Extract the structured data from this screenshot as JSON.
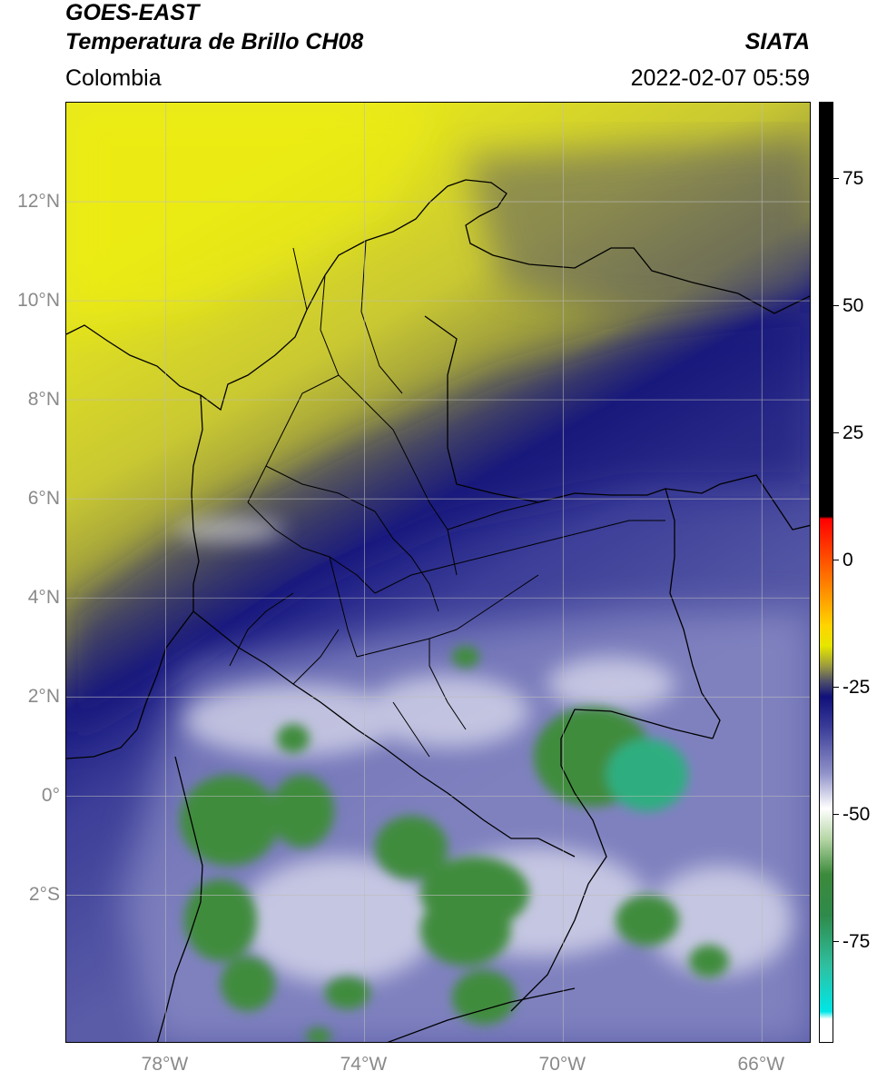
{
  "header": {
    "title_line1": "GOES-EAST",
    "title_line2": "Temperatura de Brillo CH08",
    "credit": "SIATA",
    "region": "Colombia",
    "timestamp": "2022-02-07 05:59"
  },
  "map": {
    "lat_range": [
      -5.0,
      14.0
    ],
    "lon_range": [
      -80.0,
      -65.0
    ],
    "lat_ticks": [
      {
        "value": 12,
        "label": "12°N"
      },
      {
        "value": 10,
        "label": "10°N"
      },
      {
        "value": 8,
        "label": "8°N"
      },
      {
        "value": 6,
        "label": "6°N"
      },
      {
        "value": 4,
        "label": "4°N"
      },
      {
        "value": 2,
        "label": "2°N"
      },
      {
        "value": 0,
        "label": "0°"
      },
      {
        "value": -2,
        "label": "2°S"
      }
    ],
    "lon_ticks": [
      {
        "value": -78,
        "label": "78°W"
      },
      {
        "value": -74,
        "label": "74°W"
      },
      {
        "value": -70,
        "label": "70°W"
      },
      {
        "value": -66,
        "label": "66°W"
      }
    ],
    "colors": {
      "warm_yellow": "#e6e600",
      "olive": "#8f8f3a",
      "dark_blue": "#1a1a80",
      "mid_blue": "#4a4ca0",
      "light_blue": "#a7a9d6",
      "cloud_green": "#3e8a3e"
    }
  },
  "colorbar": {
    "range": [
      -95,
      90
    ],
    "ticks": [
      {
        "value": 75,
        "label": "75"
      },
      {
        "value": 50,
        "label": "50"
      },
      {
        "value": 25,
        "label": "25"
      },
      {
        "value": 0,
        "label": "0"
      },
      {
        "value": -25,
        "label": "-25"
      },
      {
        "value": -50,
        "label": "-50"
      },
      {
        "value": -75,
        "label": "-75"
      }
    ],
    "stops": [
      {
        "value": 90,
        "color": "#000000"
      },
      {
        "value": 8.5,
        "color": "#000000"
      },
      {
        "value": 8,
        "color": "#ff0000"
      },
      {
        "value": 2,
        "color": "#ff3c00"
      },
      {
        "value": -6,
        "color": "#ff8c00"
      },
      {
        "value": -13,
        "color": "#ffd400"
      },
      {
        "value": -17,
        "color": "#e6e600"
      },
      {
        "value": -21,
        "color": "#9a9a40"
      },
      {
        "value": -24,
        "color": "#4f4f6a"
      },
      {
        "value": -27,
        "color": "#10107a"
      },
      {
        "value": -33,
        "color": "#3a3c98"
      },
      {
        "value": -42,
        "color": "#8f91c8"
      },
      {
        "value": -49,
        "color": "#ffffff"
      },
      {
        "value": -55,
        "color": "#b6d6a6"
      },
      {
        "value": -62,
        "color": "#3c8a3c"
      },
      {
        "value": -70,
        "color": "#2f8a4a"
      },
      {
        "value": -80,
        "color": "#2fbfa0"
      },
      {
        "value": -89,
        "color": "#00e6e6"
      },
      {
        "value": -90.5,
        "color": "#ffffff"
      },
      {
        "value": -95,
        "color": "#ffffff"
      }
    ]
  }
}
